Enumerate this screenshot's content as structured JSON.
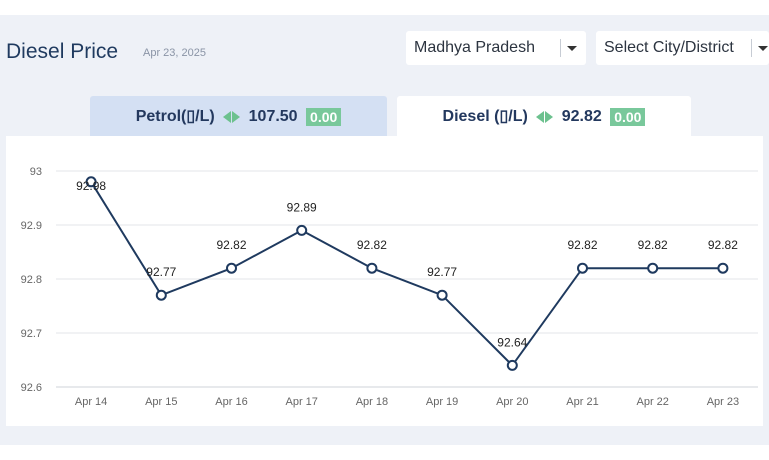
{
  "header": {
    "title": "Diesel Price",
    "date": "Apr 23, 2025"
  },
  "filters": {
    "state": "Madhya Pradesh",
    "city_placeholder": "Select City/District"
  },
  "tabs": [
    {
      "label": "Petrol(▯/L)",
      "price": "107.50",
      "change": "0.00",
      "active": false
    },
    {
      "label": "Diesel (▯/L)",
      "price": "92.82",
      "change": "0.00",
      "active": true
    }
  ],
  "colors": {
    "line": "#1f3a5f",
    "badge": "#79c89b",
    "arrows": "#6cc18e",
    "active_tab": "#ffffff",
    "inactive_tab": "#d4e0f3"
  },
  "chart_data": {
    "type": "line",
    "title": "",
    "xlabel": "",
    "ylabel": "",
    "categories": [
      "Apr 14",
      "Apr 15",
      "Apr 16",
      "Apr 17",
      "Apr 18",
      "Apr 19",
      "Apr 20",
      "Apr 21",
      "Apr 22",
      "Apr 23"
    ],
    "values": [
      92.98,
      92.77,
      92.82,
      92.89,
      92.82,
      92.77,
      92.64,
      92.82,
      92.82,
      92.82
    ],
    "yticks": [
      "93",
      "92.9",
      "92.8",
      "92.7",
      "92.6"
    ],
    "ylim": [
      92.6,
      93.0
    ],
    "grid": true,
    "legend": "none"
  }
}
